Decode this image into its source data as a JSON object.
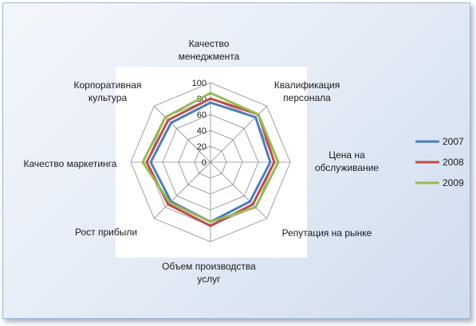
{
  "chart_data": {
    "type": "radar",
    "categories": [
      "Качество менеджмента",
      "Квалификация персонала",
      "Цена на обслуживание",
      "Репутация на рынке",
      "Объем производства услуг",
      "Рост  прибыли",
      "Качество маркетинга",
      "Корпоративная культура"
    ],
    "category_lines": [
      [
        "Качество",
        "менеджмента"
      ],
      [
        "Квалификация",
        "персонала"
      ],
      [
        "Цена на",
        "обслуживание"
      ],
      [
        "Репутация на рынке"
      ],
      [
        "Объем производства",
        "услуг"
      ],
      [
        "Рост  прибыли"
      ],
      [
        "Качество маркетинга"
      ],
      [
        "Корпоративная",
        "культура"
      ]
    ],
    "rlim": [
      0,
      100
    ],
    "ticks": [
      "0",
      "20",
      "40",
      "60",
      "80",
      "100"
    ],
    "legend_position": "right",
    "series": [
      {
        "name": "2007",
        "color": "#4a7ebb",
        "values": [
          75,
          80,
          75,
          70,
          75,
          70,
          75,
          70
        ]
      },
      {
        "name": "2008",
        "color": "#be4b48",
        "values": [
          80,
          85,
          80,
          75,
          80,
          75,
          80,
          75
        ]
      },
      {
        "name": "2009",
        "color": "#98b954",
        "values": [
          87,
          85,
          85,
          80,
          75,
          72,
          85,
          80
        ]
      }
    ]
  }
}
